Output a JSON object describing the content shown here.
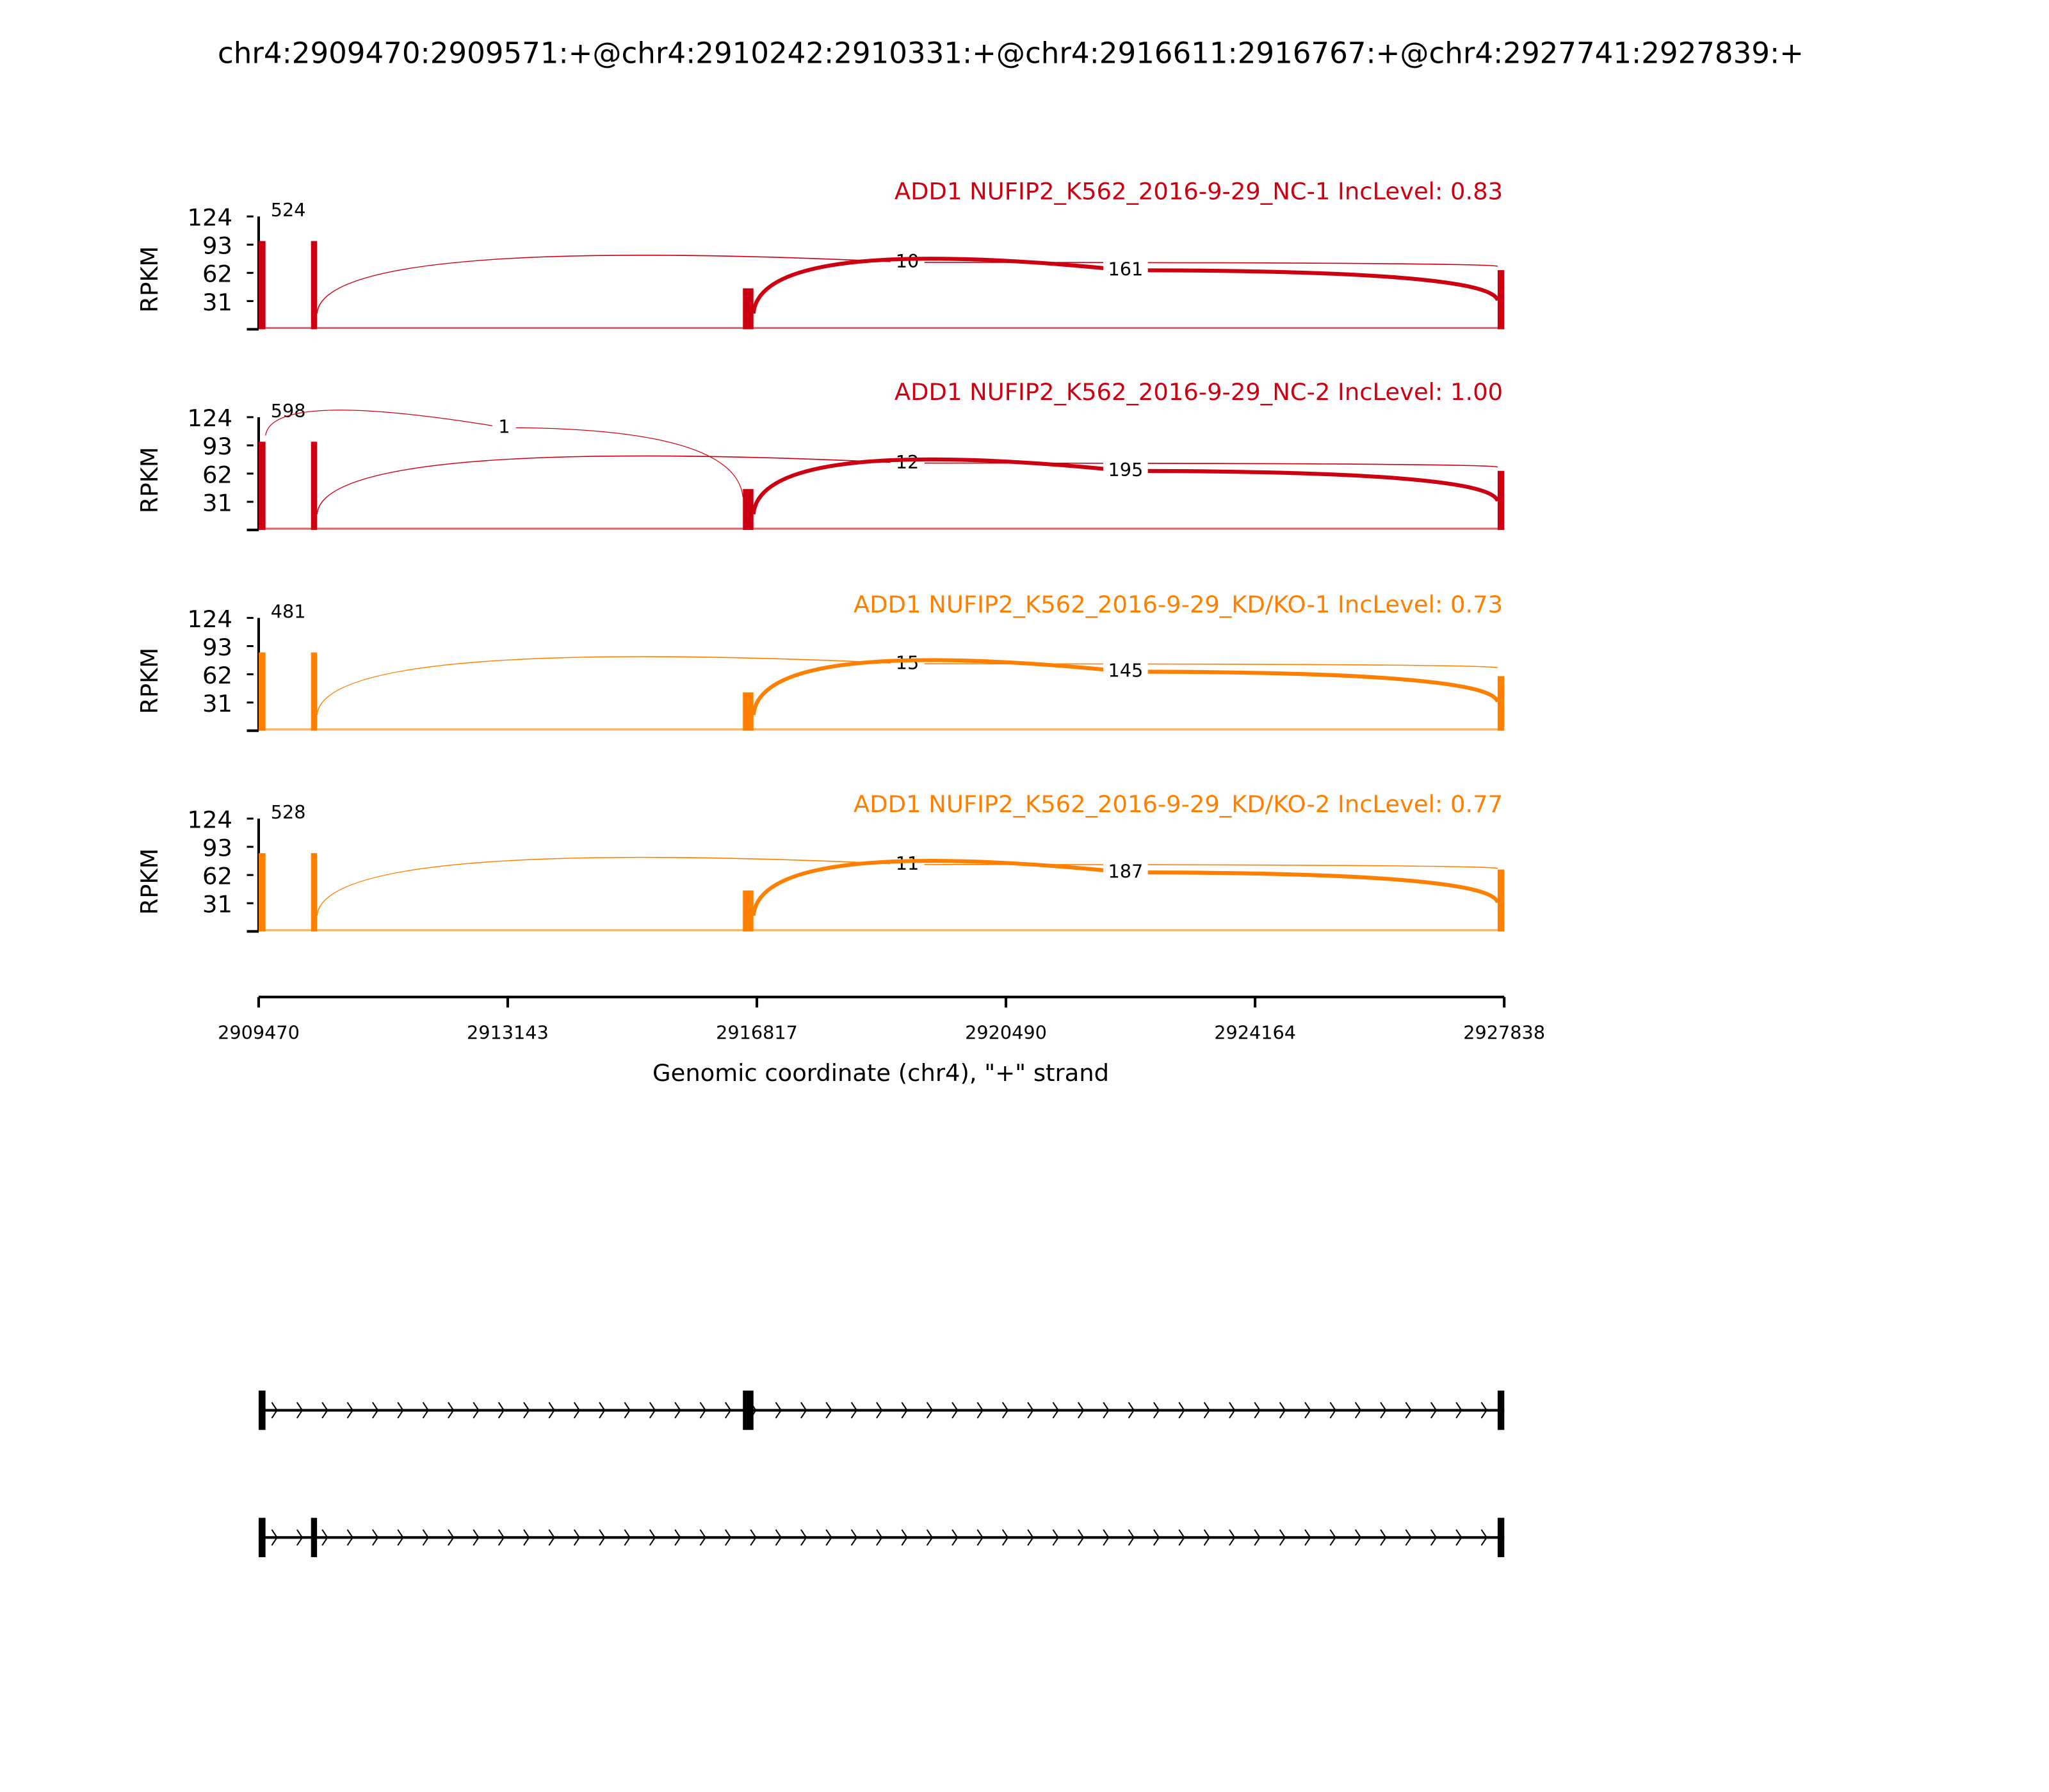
{
  "chart_data": {
    "type": "area",
    "title": "chr4:2909470:2909571:+@chr4:2910242:2910331:+@chr4:2916611:2916767:+@chr4:2927741:2927839:+",
    "xlabel": "Genomic coordinate (chr4), \"+\" strand",
    "ylabel": "RPKM",
    "xlim": [
      2909470,
      2927838
    ],
    "xticks": [
      "2909470",
      "2913143",
      "2916817",
      "2920490",
      "2924164",
      "2927838"
    ],
    "ylim": [
      0,
      124
    ],
    "yticks": [
      "31",
      "62",
      "93",
      "124"
    ],
    "exons": [
      [
        2909470,
        2909571
      ],
      [
        2910242,
        2910331
      ],
      [
        2916611,
        2916767
      ],
      [
        2927741,
        2927839
      ]
    ],
    "panels": [
      {
        "title": "ADD1 NUFIP2_K562_2016-9-29_NC-1 IncLevel: 0.83",
        "color": "#cc0011",
        "coverage": [
          97,
          97,
          45,
          65
        ],
        "junctions": [
          {
            "from": 0,
            "to": 1,
            "count": "524"
          },
          {
            "from": 1,
            "to": 3,
            "count": "10"
          },
          {
            "from": 2,
            "to": 3,
            "count": "161"
          }
        ]
      },
      {
        "title": "ADD1 NUFIP2_K562_2016-9-29_NC-2 IncLevel: 1.00",
        "color": "#cc0011",
        "coverage": [
          97,
          97,
          45,
          65
        ],
        "junctions": [
          {
            "from": 0,
            "to": 1,
            "count": "598"
          },
          {
            "from": 0,
            "to": 2,
            "count": "1"
          },
          {
            "from": 1,
            "to": 3,
            "count": "12"
          },
          {
            "from": 2,
            "to": 3,
            "count": "195"
          }
        ]
      },
      {
        "title": "ADD1 NUFIP2_K562_2016-9-29_KD/KO-1 IncLevel: 0.73",
        "color": "#ff8000",
        "coverage": [
          86,
          86,
          42,
          60
        ],
        "junctions": [
          {
            "from": 0,
            "to": 1,
            "count": "481"
          },
          {
            "from": 1,
            "to": 3,
            "count": "15"
          },
          {
            "from": 2,
            "to": 3,
            "count": "145"
          }
        ]
      },
      {
        "title": "ADD1 NUFIP2_K562_2016-9-29_KD/KO-2 IncLevel: 0.77",
        "color": "#ff8000",
        "coverage": [
          86,
          86,
          45,
          68
        ],
        "junctions": [
          {
            "from": 0,
            "to": 1,
            "count": "528"
          },
          {
            "from": 1,
            "to": 3,
            "count": "11"
          },
          {
            "from": 2,
            "to": 3,
            "count": "187"
          }
        ]
      }
    ],
    "isoforms": [
      [
        0,
        2,
        3
      ],
      [
        0,
        1,
        3
      ]
    ]
  }
}
